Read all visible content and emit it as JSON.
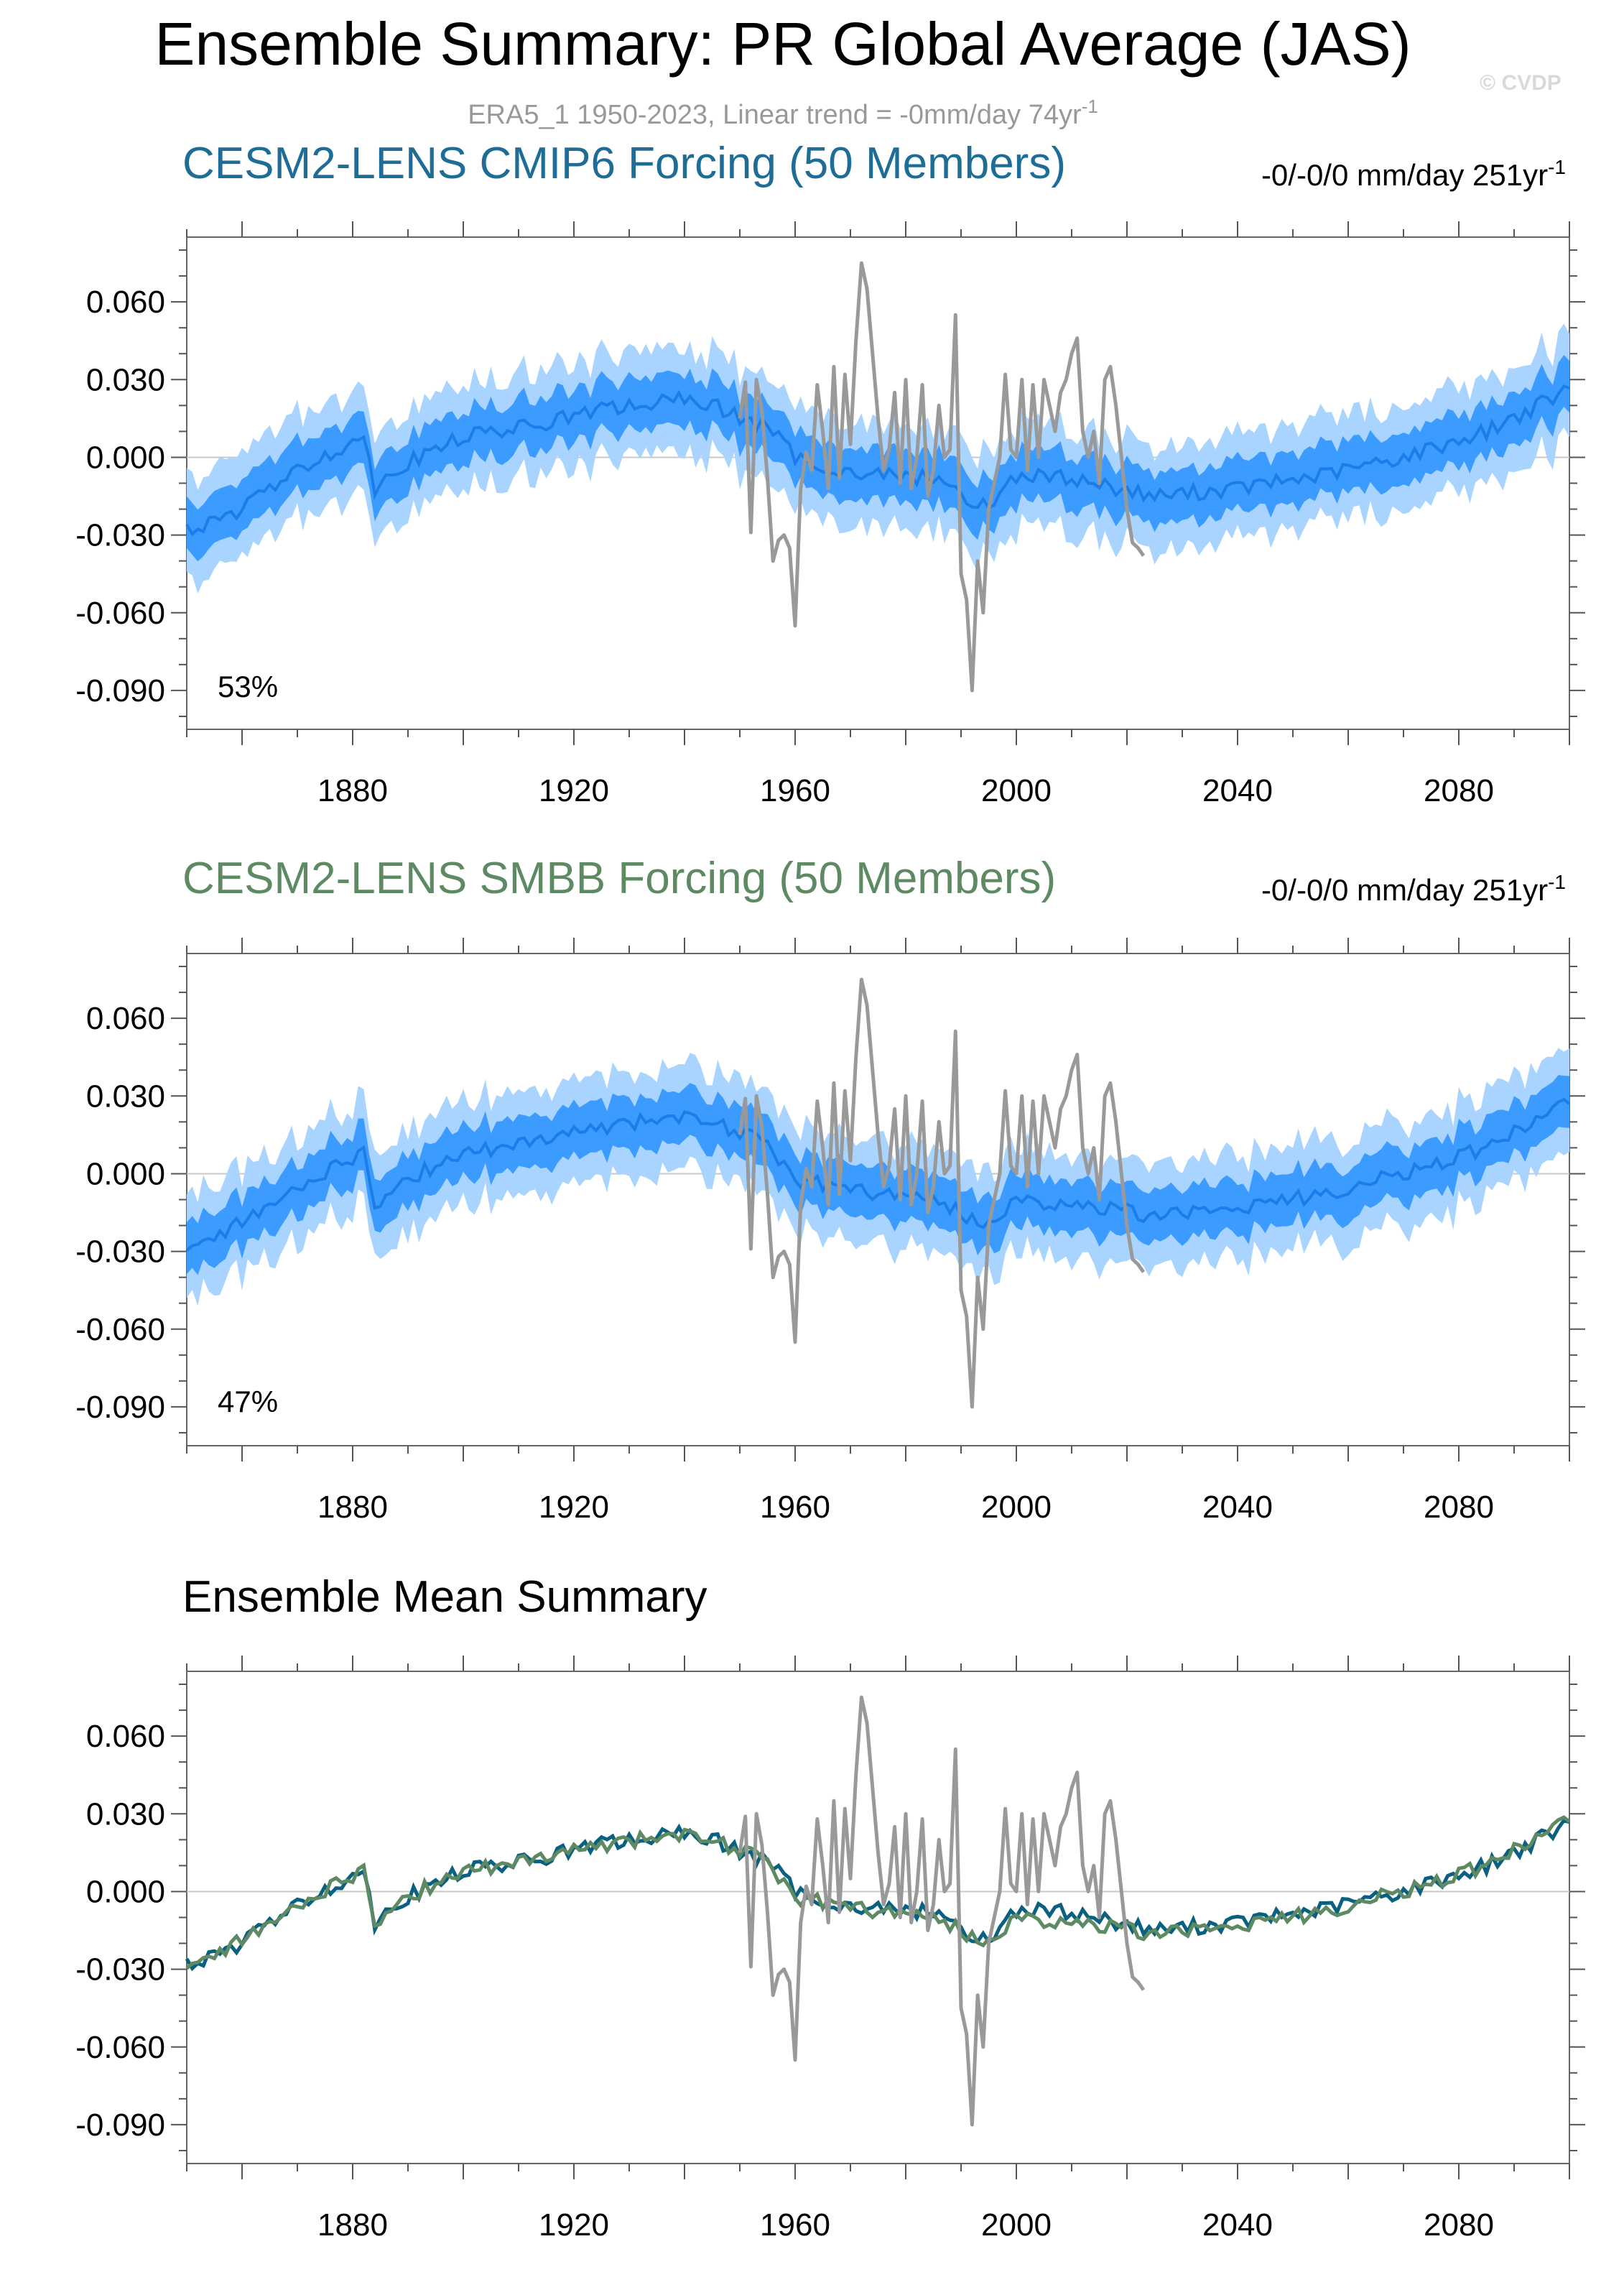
{
  "title": "Ensemble Summary: PR Global Average (JAS)",
  "copyright": "© CVDP",
  "obs_subtitle": "ERA5_1 1950-2023, Linear trend = -0mm/day 74yr",
  "obs_subtitle_sup": "-1",
  "colors": {
    "band_outer": "#a8d4ff",
    "band_inner": "#3b9bff",
    "mean_line": "#1a7de8",
    "obs_line": "#999999",
    "panel1_title": "#1e6d96",
    "panel2_title": "#5e8a63",
    "mean_cmip6": "#0a6080",
    "mean_smbb": "#5e8a63"
  },
  "chart_data": [
    {
      "type": "area",
      "title": "CESM2-LENS CMIP6 Forcing (50 Members)",
      "trend_text": "-0/-0/0 mm/day 251yr",
      "trend_sup": "-1",
      "percent": "53%",
      "x_range": [
        1850,
        2100
      ],
      "ylim": [
        -0.105,
        0.085
      ],
      "y_ticks": [
        "0.060",
        "0.030",
        "0.000",
        "-0.030",
        "-0.060",
        "-0.090"
      ],
      "x_ticks": [
        "1880",
        "1920",
        "1960",
        "2000",
        "2040",
        "2080"
      ],
      "series": [
        {
          "role": "ensemble-mean",
          "knots": [
            [
              1850,
              -0.028
            ],
            [
              1856,
              -0.025
            ],
            [
              1865,
              -0.012
            ],
            [
              1876,
              0.002
            ],
            [
              1882,
              0.008
            ],
            [
              1884,
              -0.012
            ],
            [
              1888,
              -0.004
            ],
            [
              1900,
              0.008
            ],
            [
              1912,
              0.012
            ],
            [
              1924,
              0.018
            ],
            [
              1938,
              0.022
            ],
            [
              1945,
              0.021
            ],
            [
              1950,
              0.015
            ],
            [
              1955,
              0.012
            ],
            [
              1960,
              0.0
            ],
            [
              1970,
              -0.006
            ],
            [
              1985,
              -0.008
            ],
            [
              1990,
              -0.013
            ],
            [
              1993,
              -0.02
            ],
            [
              1996,
              -0.016
            ],
            [
              2000,
              -0.007
            ],
            [
              2010,
              -0.008
            ],
            [
              2025,
              -0.015
            ],
            [
              2040,
              -0.012
            ],
            [
              2055,
              -0.007
            ],
            [
              2070,
              0.0
            ],
            [
              2085,
              0.01
            ],
            [
              2100,
              0.026
            ]
          ]
        },
        {
          "role": "ensemble-spread",
          "inner_halfwidth": 0.01,
          "outer_halfwidth": 0.02
        }
      ]
    },
    {
      "type": "area",
      "title": "CESM2-LENS SMBB Forcing (50 Members)",
      "trend_text": "-0/-0/0 mm/day 251yr",
      "trend_sup": "-1",
      "percent": "47%",
      "x_range": [
        1850,
        2100
      ],
      "ylim": [
        -0.105,
        0.085
      ],
      "y_ticks": [
        "0.060",
        "0.030",
        "0.000",
        "-0.030",
        "-0.060",
        "-0.090"
      ],
      "x_ticks": [
        "1880",
        "1920",
        "1960",
        "2000",
        "2040",
        "2080"
      ],
      "series": [
        {
          "role": "ensemble-mean",
          "knots": [
            [
              1850,
              -0.028
            ],
            [
              1856,
              -0.024
            ],
            [
              1865,
              -0.012
            ],
            [
              1876,
              0.002
            ],
            [
              1882,
              0.008
            ],
            [
              1884,
              -0.012
            ],
            [
              1888,
              -0.004
            ],
            [
              1900,
              0.008
            ],
            [
              1912,
              0.012
            ],
            [
              1924,
              0.018
            ],
            [
              1938,
              0.022
            ],
            [
              1945,
              0.021
            ],
            [
              1950,
              0.015
            ],
            [
              1955,
              0.012
            ],
            [
              1960,
              -0.002
            ],
            [
              1970,
              -0.006
            ],
            [
              1985,
              -0.01
            ],
            [
              1990,
              -0.015
            ],
            [
              1993,
              -0.02
            ],
            [
              1996,
              -0.017
            ],
            [
              2000,
              -0.01
            ],
            [
              2010,
              -0.012
            ],
            [
              2025,
              -0.016
            ],
            [
              2040,
              -0.013
            ],
            [
              2055,
              -0.008
            ],
            [
              2070,
              0.0
            ],
            [
              2085,
              0.01
            ],
            [
              2100,
              0.028
            ]
          ]
        },
        {
          "role": "ensemble-spread",
          "inner_halfwidth": 0.01,
          "outer_halfwidth": 0.02
        }
      ]
    },
    {
      "type": "line",
      "title": "Ensemble Mean Summary",
      "x_range": [
        1850,
        2100
      ],
      "ylim": [
        -0.105,
        0.085
      ],
      "y_ticks": [
        "0.060",
        "0.030",
        "0.000",
        "-0.030",
        "-0.060",
        "-0.090"
      ],
      "x_ticks": [
        "1880",
        "1920",
        "1960",
        "2000",
        "2040",
        "2080"
      ],
      "series": [
        {
          "role": "cmip6-mean",
          "knots": [
            [
              1850,
              -0.028
            ],
            [
              1856,
              -0.025
            ],
            [
              1865,
              -0.012
            ],
            [
              1876,
              0.002
            ],
            [
              1882,
              0.008
            ],
            [
              1884,
              -0.012
            ],
            [
              1888,
              -0.004
            ],
            [
              1900,
              0.008
            ],
            [
              1912,
              0.012
            ],
            [
              1924,
              0.018
            ],
            [
              1938,
              0.022
            ],
            [
              1945,
              0.021
            ],
            [
              1950,
              0.015
            ],
            [
              1955,
              0.012
            ],
            [
              1960,
              0.0
            ],
            [
              1970,
              -0.006
            ],
            [
              1985,
              -0.008
            ],
            [
              1990,
              -0.013
            ],
            [
              1993,
              -0.02
            ],
            [
              1996,
              -0.016
            ],
            [
              2000,
              -0.007
            ],
            [
              2010,
              -0.008
            ],
            [
              2025,
              -0.015
            ],
            [
              2040,
              -0.012
            ],
            [
              2055,
              -0.007
            ],
            [
              2070,
              0.0
            ],
            [
              2085,
              0.01
            ],
            [
              2100,
              0.026
            ]
          ]
        },
        {
          "role": "smbb-mean",
          "knots": [
            [
              1850,
              -0.028
            ],
            [
              1856,
              -0.024
            ],
            [
              1865,
              -0.012
            ],
            [
              1876,
              0.002
            ],
            [
              1882,
              0.008
            ],
            [
              1884,
              -0.012
            ],
            [
              1888,
              -0.004
            ],
            [
              1900,
              0.008
            ],
            [
              1912,
              0.012
            ],
            [
              1924,
              0.018
            ],
            [
              1938,
              0.022
            ],
            [
              1945,
              0.021
            ],
            [
              1950,
              0.015
            ],
            [
              1955,
              0.012
            ],
            [
              1960,
              -0.002
            ],
            [
              1970,
              -0.006
            ],
            [
              1985,
              -0.01
            ],
            [
              1990,
              -0.015
            ],
            [
              1993,
              -0.02
            ],
            [
              1996,
              -0.017
            ],
            [
              2000,
              -0.01
            ],
            [
              2010,
              -0.012
            ],
            [
              2025,
              -0.016
            ],
            [
              2040,
              -0.013
            ],
            [
              2055,
              -0.008
            ],
            [
              2070,
              0.0
            ],
            [
              2085,
              0.01
            ],
            [
              2100,
              0.028
            ]
          ]
        }
      ]
    }
  ],
  "observations": {
    "x": [
      1950,
      1951,
      1952,
      1953,
      1954,
      1955,
      1956,
      1957,
      1958,
      1959,
      1960,
      1961,
      1962,
      1963,
      1964,
      1965,
      1966,
      1967,
      1968,
      1969,
      1970,
      1971,
      1972,
      1973,
      1974,
      1975,
      1976,
      1977,
      1978,
      1979,
      1980,
      1981,
      1982,
      1983,
      1984,
      1985,
      1986,
      1987,
      1988,
      1989,
      1990,
      1991,
      1992,
      1993,
      1994,
      1995,
      1996,
      1997,
      1998,
      1999,
      2000,
      2001,
      2002,
      2003,
      2004,
      2005,
      2006,
      2007,
      2008,
      2009,
      2010,
      2011,
      2012,
      2013,
      2014,
      2015,
      2016,
      2017,
      2018,
      2019,
      2020,
      2021,
      2022,
      2023
    ],
    "y": [
      0.015,
      0.029,
      -0.029,
      0.03,
      0.018,
      -0.008,
      -0.04,
      -0.032,
      -0.03,
      -0.035,
      -0.065,
      -0.012,
      0.002,
      -0.005,
      0.028,
      0.01,
      -0.012,
      0.035,
      -0.008,
      0.032,
      0.005,
      0.045,
      0.075,
      0.065,
      0.04,
      0.015,
      -0.005,
      0.003,
      0.025,
      -0.01,
      0.03,
      -0.012,
      0.0,
      0.028,
      -0.015,
      -0.005,
      0.02,
      0.0,
      0.003,
      0.055,
      -0.045,
      -0.055,
      -0.09,
      -0.04,
      -0.06,
      -0.02,
      -0.01,
      0.0,
      0.032,
      0.003,
      0.0,
      0.03,
      -0.005,
      0.028,
      0.0,
      0.03,
      0.02,
      0.01,
      0.025,
      0.03,
      0.04,
      0.046,
      0.01,
      0.0,
      0.01,
      -0.01,
      0.03,
      0.035,
      0.02,
      0.0,
      -0.02,
      -0.033,
      -0.035,
      -0.038
    ]
  }
}
